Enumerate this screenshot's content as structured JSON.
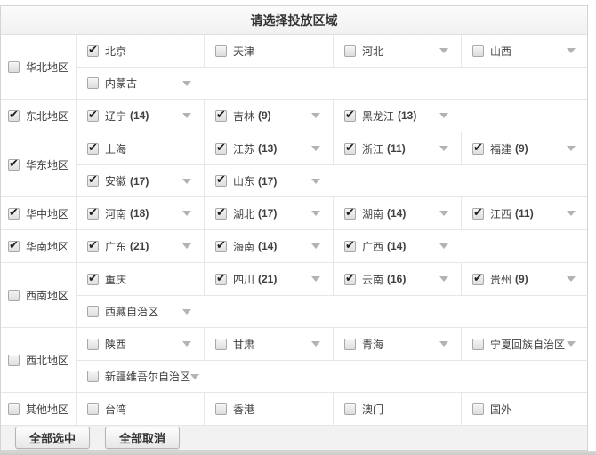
{
  "title": "请选择投放区域",
  "buttons": {
    "select_all": "全部选中",
    "deselect_all": "全部取消"
  },
  "colors": {
    "header_bg": "#f1f1f1",
    "grid_border": "#e6e6e6",
    "arrow_icon": "#b3b3b3",
    "footer_bg": "#f2f2f2",
    "check_color": "#1f1f1f"
  },
  "groups": [
    {
      "name": "华北地区",
      "checked": false,
      "rows": [
        [
          {
            "label": "北京",
            "checked": true,
            "arrow": false
          },
          {
            "label": "天津",
            "checked": false,
            "arrow": false
          },
          {
            "label": "河北",
            "checked": false,
            "arrow": true
          },
          {
            "label": "山西",
            "checked": false,
            "arrow": true
          }
        ],
        [
          {
            "label": "内蒙古",
            "checked": false,
            "arrow": true
          }
        ]
      ]
    },
    {
      "name": "东北地区",
      "checked": true,
      "rows": [
        [
          {
            "label": "辽宁",
            "count": "(14)",
            "checked": true,
            "arrow": true
          },
          {
            "label": "吉林",
            "count": "(9)",
            "checked": true,
            "arrow": true
          },
          {
            "label": "黑龙江",
            "count": "(13)",
            "checked": true,
            "arrow": true
          }
        ]
      ]
    },
    {
      "name": "华东地区",
      "checked": true,
      "rows": [
        [
          {
            "label": "上海",
            "checked": true,
            "arrow": false
          },
          {
            "label": "江苏",
            "count": "(13)",
            "checked": true,
            "arrow": true
          },
          {
            "label": "浙江",
            "count": "(11)",
            "checked": true,
            "arrow": true
          },
          {
            "label": "福建",
            "count": "(9)",
            "checked": true,
            "arrow": true
          }
        ],
        [
          {
            "label": "安徽",
            "count": "(17)",
            "checked": true,
            "arrow": true
          },
          {
            "label": "山东",
            "count": "(17)",
            "checked": true,
            "arrow": true
          }
        ]
      ]
    },
    {
      "name": "华中地区",
      "checked": true,
      "rows": [
        [
          {
            "label": "河南",
            "count": "(18)",
            "checked": true,
            "arrow": true
          },
          {
            "label": "湖北",
            "count": "(17)",
            "checked": true,
            "arrow": true
          },
          {
            "label": "湖南",
            "count": "(14)",
            "checked": true,
            "arrow": true
          },
          {
            "label": "江西",
            "count": "(11)",
            "checked": true,
            "arrow": true
          }
        ]
      ]
    },
    {
      "name": "华南地区",
      "checked": true,
      "rows": [
        [
          {
            "label": "广东",
            "count": "(21)",
            "checked": true,
            "arrow": true
          },
          {
            "label": "海南",
            "count": "(14)",
            "checked": true,
            "arrow": true
          },
          {
            "label": "广西",
            "count": "(14)",
            "checked": true,
            "arrow": true
          }
        ]
      ]
    },
    {
      "name": "西南地区",
      "checked": false,
      "rows": [
        [
          {
            "label": "重庆",
            "checked": true,
            "arrow": false
          },
          {
            "label": "四川",
            "count": "(21)",
            "checked": true,
            "arrow": true
          },
          {
            "label": "云南",
            "count": "(16)",
            "checked": true,
            "arrow": true
          },
          {
            "label": "贵州",
            "count": "(9)",
            "checked": true,
            "arrow": true
          }
        ],
        [
          {
            "label": "西藏自治区",
            "checked": false,
            "arrow": true
          }
        ]
      ]
    },
    {
      "name": "西北地区",
      "checked": false,
      "rows": [
        [
          {
            "label": "陕西",
            "checked": false,
            "arrow": true
          },
          {
            "label": "甘肃",
            "checked": false,
            "arrow": true
          },
          {
            "label": "青海",
            "checked": false,
            "arrow": true
          },
          {
            "label": "宁夏回族自治区",
            "checked": false,
            "arrow": true
          }
        ],
        [
          {
            "label": "新疆维吾尔自治区",
            "checked": false,
            "arrow": true
          }
        ]
      ]
    },
    {
      "name": "其他地区",
      "checked": false,
      "rows": [
        [
          {
            "label": "台湾",
            "checked": false,
            "arrow": false
          },
          {
            "label": "香港",
            "checked": false,
            "arrow": false
          },
          {
            "label": "澳门",
            "checked": false,
            "arrow": false
          },
          {
            "label": "国外",
            "checked": false,
            "arrow": false
          }
        ]
      ]
    }
  ]
}
